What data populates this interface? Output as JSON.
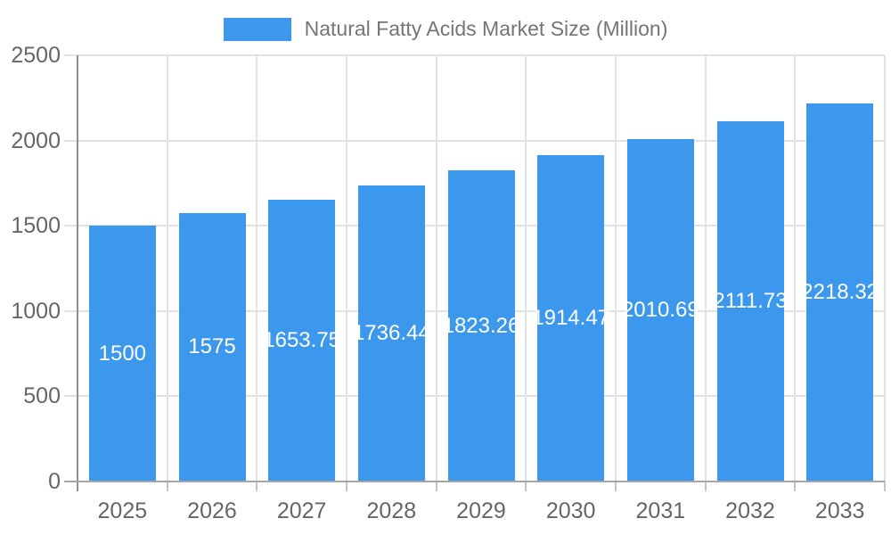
{
  "legend": {
    "label": "Natural Fatty Acids Market Size (Million)"
  },
  "chart_data": {
    "type": "bar",
    "title": "Natural Fatty Acids Market Size (Million)",
    "categories": [
      "2025",
      "2026",
      "2027",
      "2028",
      "2029",
      "2030",
      "2031",
      "2032",
      "2033"
    ],
    "series": [
      {
        "name": "Natural Fatty Acids Market Size (Million)",
        "values": [
          1500,
          1575,
          1653.75,
          1736.44,
          1823.26,
          1914.47,
          2010.69,
          2111.73,
          2218.32
        ]
      }
    ],
    "value_labels": [
      "1500",
      "1575",
      "1653.75",
      "1736.44",
      "1823.26",
      "1914.47",
      "2010.69",
      "2111.73",
      "2218.32"
    ],
    "xlabel": "",
    "ylabel": "",
    "ylim": [
      0,
      2500
    ],
    "ytick_step": 500,
    "ytick_labels": [
      "0",
      "500",
      "1000",
      "1500",
      "2000",
      "2500"
    ],
    "grid": true,
    "legend_position": "top",
    "bar_color": "#3c98ed",
    "value_label_color": "#ffffff",
    "grid_color": "#e2e2e2",
    "axis_color": "#8f8f8f",
    "tick_text_color": "#666666",
    "legend_text_color": "#757575",
    "background_color": "#ffffff"
  }
}
